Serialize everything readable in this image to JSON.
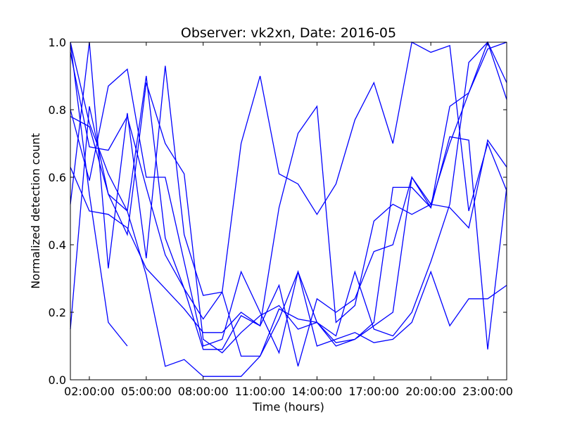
{
  "chart_data": {
    "type": "line",
    "title": "Observer: vk2xn, Date: 2016-05",
    "xlabel": "Time (hours)",
    "ylabel": "Normalized detection count",
    "xlim": [
      1,
      24
    ],
    "ylim": [
      0.0,
      1.0
    ],
    "x_ticks": [
      2,
      5,
      8,
      11,
      14,
      17,
      20,
      23
    ],
    "x_tick_labels": [
      "02:00:00",
      "05:00:00",
      "08:00:00",
      "11:00:00",
      "14:00:00",
      "17:00:00",
      "20:00:00",
      "23:00:00"
    ],
    "y_ticks": [
      0.0,
      0.2,
      0.4,
      0.6,
      0.8,
      1.0
    ],
    "y_tick_labels": [
      "0.0",
      "0.2",
      "0.4",
      "0.6",
      "0.8",
      "1.0"
    ],
    "grid": false,
    "line_color": "#0000ff",
    "series": [
      {
        "x": [
          1,
          2,
          3,
          4
        ],
        "y": [
          1.0,
          0.55,
          0.17,
          0.1
        ]
      },
      {
        "x": [
          1,
          2,
          3,
          4,
          5,
          6,
          7,
          8,
          9,
          10,
          11,
          12,
          13,
          14,
          15,
          16,
          17,
          18,
          19,
          20,
          21,
          22,
          23,
          24
        ],
        "y": [
          0.52,
          1.0,
          0.33,
          0.79,
          0.36,
          0.93,
          0.43,
          0.25,
          0.26,
          0.07,
          0.07,
          0.21,
          0.18,
          0.17,
          0.1,
          0.12,
          0.17,
          0.57,
          0.57,
          0.51,
          0.81,
          0.85,
          1.0,
          0.88
        ]
      },
      {
        "x": [
          1,
          2,
          3,
          4,
          5,
          6,
          7,
          8,
          9,
          10,
          11,
          12,
          13,
          14,
          15,
          16,
          17,
          18,
          19,
          20,
          21,
          22,
          23,
          24
        ],
        "y": [
          0.63,
          0.5,
          0.49,
          0.45,
          0.33,
          0.27,
          0.21,
          0.14,
          0.14,
          0.2,
          0.16,
          0.51,
          0.73,
          0.81,
          0.17,
          0.22,
          0.47,
          0.52,
          0.49,
          0.52,
          0.51,
          0.45,
          0.71,
          0.63
        ]
      },
      {
        "x": [
          1,
          2,
          3,
          4,
          5,
          6,
          7,
          8,
          9,
          10,
          11,
          12,
          13,
          14,
          15,
          16,
          17,
          18,
          19,
          20,
          21,
          22,
          23,
          24
        ],
        "y": [
          1.0,
          0.76,
          0.61,
          0.5,
          0.9,
          0.42,
          0.27,
          0.18,
          0.26,
          0.7,
          0.9,
          0.61,
          0.58,
          0.49,
          0.58,
          0.77,
          0.88,
          0.7,
          1.0,
          0.97,
          0.99,
          0.5,
          0.7,
          0.56
        ]
      },
      {
        "x": [
          1,
          2,
          3,
          4,
          5,
          6,
          7,
          8,
          9,
          10,
          11,
          12,
          13,
          14,
          15,
          16,
          17,
          18,
          19,
          20,
          21,
          22,
          23,
          24
        ],
        "y": [
          0.15,
          0.81,
          0.55,
          0.43,
          0.88,
          0.7,
          0.61,
          0.12,
          0.08,
          0.14,
          0.19,
          0.22,
          0.15,
          0.17,
          0.11,
          0.12,
          0.16,
          0.2,
          0.6,
          0.51,
          0.72,
          0.71,
          0.09,
          0.57
        ]
      },
      {
        "x": [
          1,
          2,
          3,
          4,
          5,
          6,
          7,
          8,
          9,
          10,
          11,
          12,
          13,
          14,
          15,
          16,
          17,
          18,
          19,
          20,
          21,
          22,
          23,
          24
        ],
        "y": [
          0.78,
          0.75,
          0.55,
          0.5,
          0.31,
          0.04,
          0.06,
          0.01,
          0.01,
          0.01,
          0.07,
          0.18,
          0.32,
          0.1,
          0.12,
          0.14,
          0.11,
          0.12,
          0.17,
          0.32,
          0.16,
          0.24,
          0.24,
          0.28
        ]
      },
      {
        "x": [
          1,
          2,
          3,
          4,
          5,
          6,
          7,
          8,
          9,
          10,
          11,
          12,
          13,
          14,
          15,
          16,
          17,
          18,
          19,
          20,
          21,
          22,
          23,
          24
        ],
        "y": [
          0.8,
          0.59,
          0.87,
          0.92,
          0.6,
          0.6,
          0.35,
          0.1,
          0.12,
          0.32,
          0.2,
          0.08,
          0.32,
          0.17,
          0.13,
          0.32,
          0.15,
          0.13,
          0.2,
          0.35,
          0.52,
          0.94,
          1.0,
          0.83
        ]
      },
      {
        "x": [
          1,
          2,
          3,
          4,
          5,
          6,
          7,
          8,
          9,
          10,
          11,
          12,
          13,
          14,
          15,
          16,
          17,
          18,
          19,
          20,
          21,
          22,
          23,
          24
        ],
        "y": [
          0.97,
          0.69,
          0.68,
          0.78,
          0.57,
          0.37,
          0.27,
          0.09,
          0.09,
          0.19,
          0.16,
          0.28,
          0.04,
          0.24,
          0.2,
          0.24,
          0.38,
          0.4,
          0.6,
          0.52,
          0.7,
          0.85,
          0.98,
          1.0
        ]
      }
    ]
  }
}
